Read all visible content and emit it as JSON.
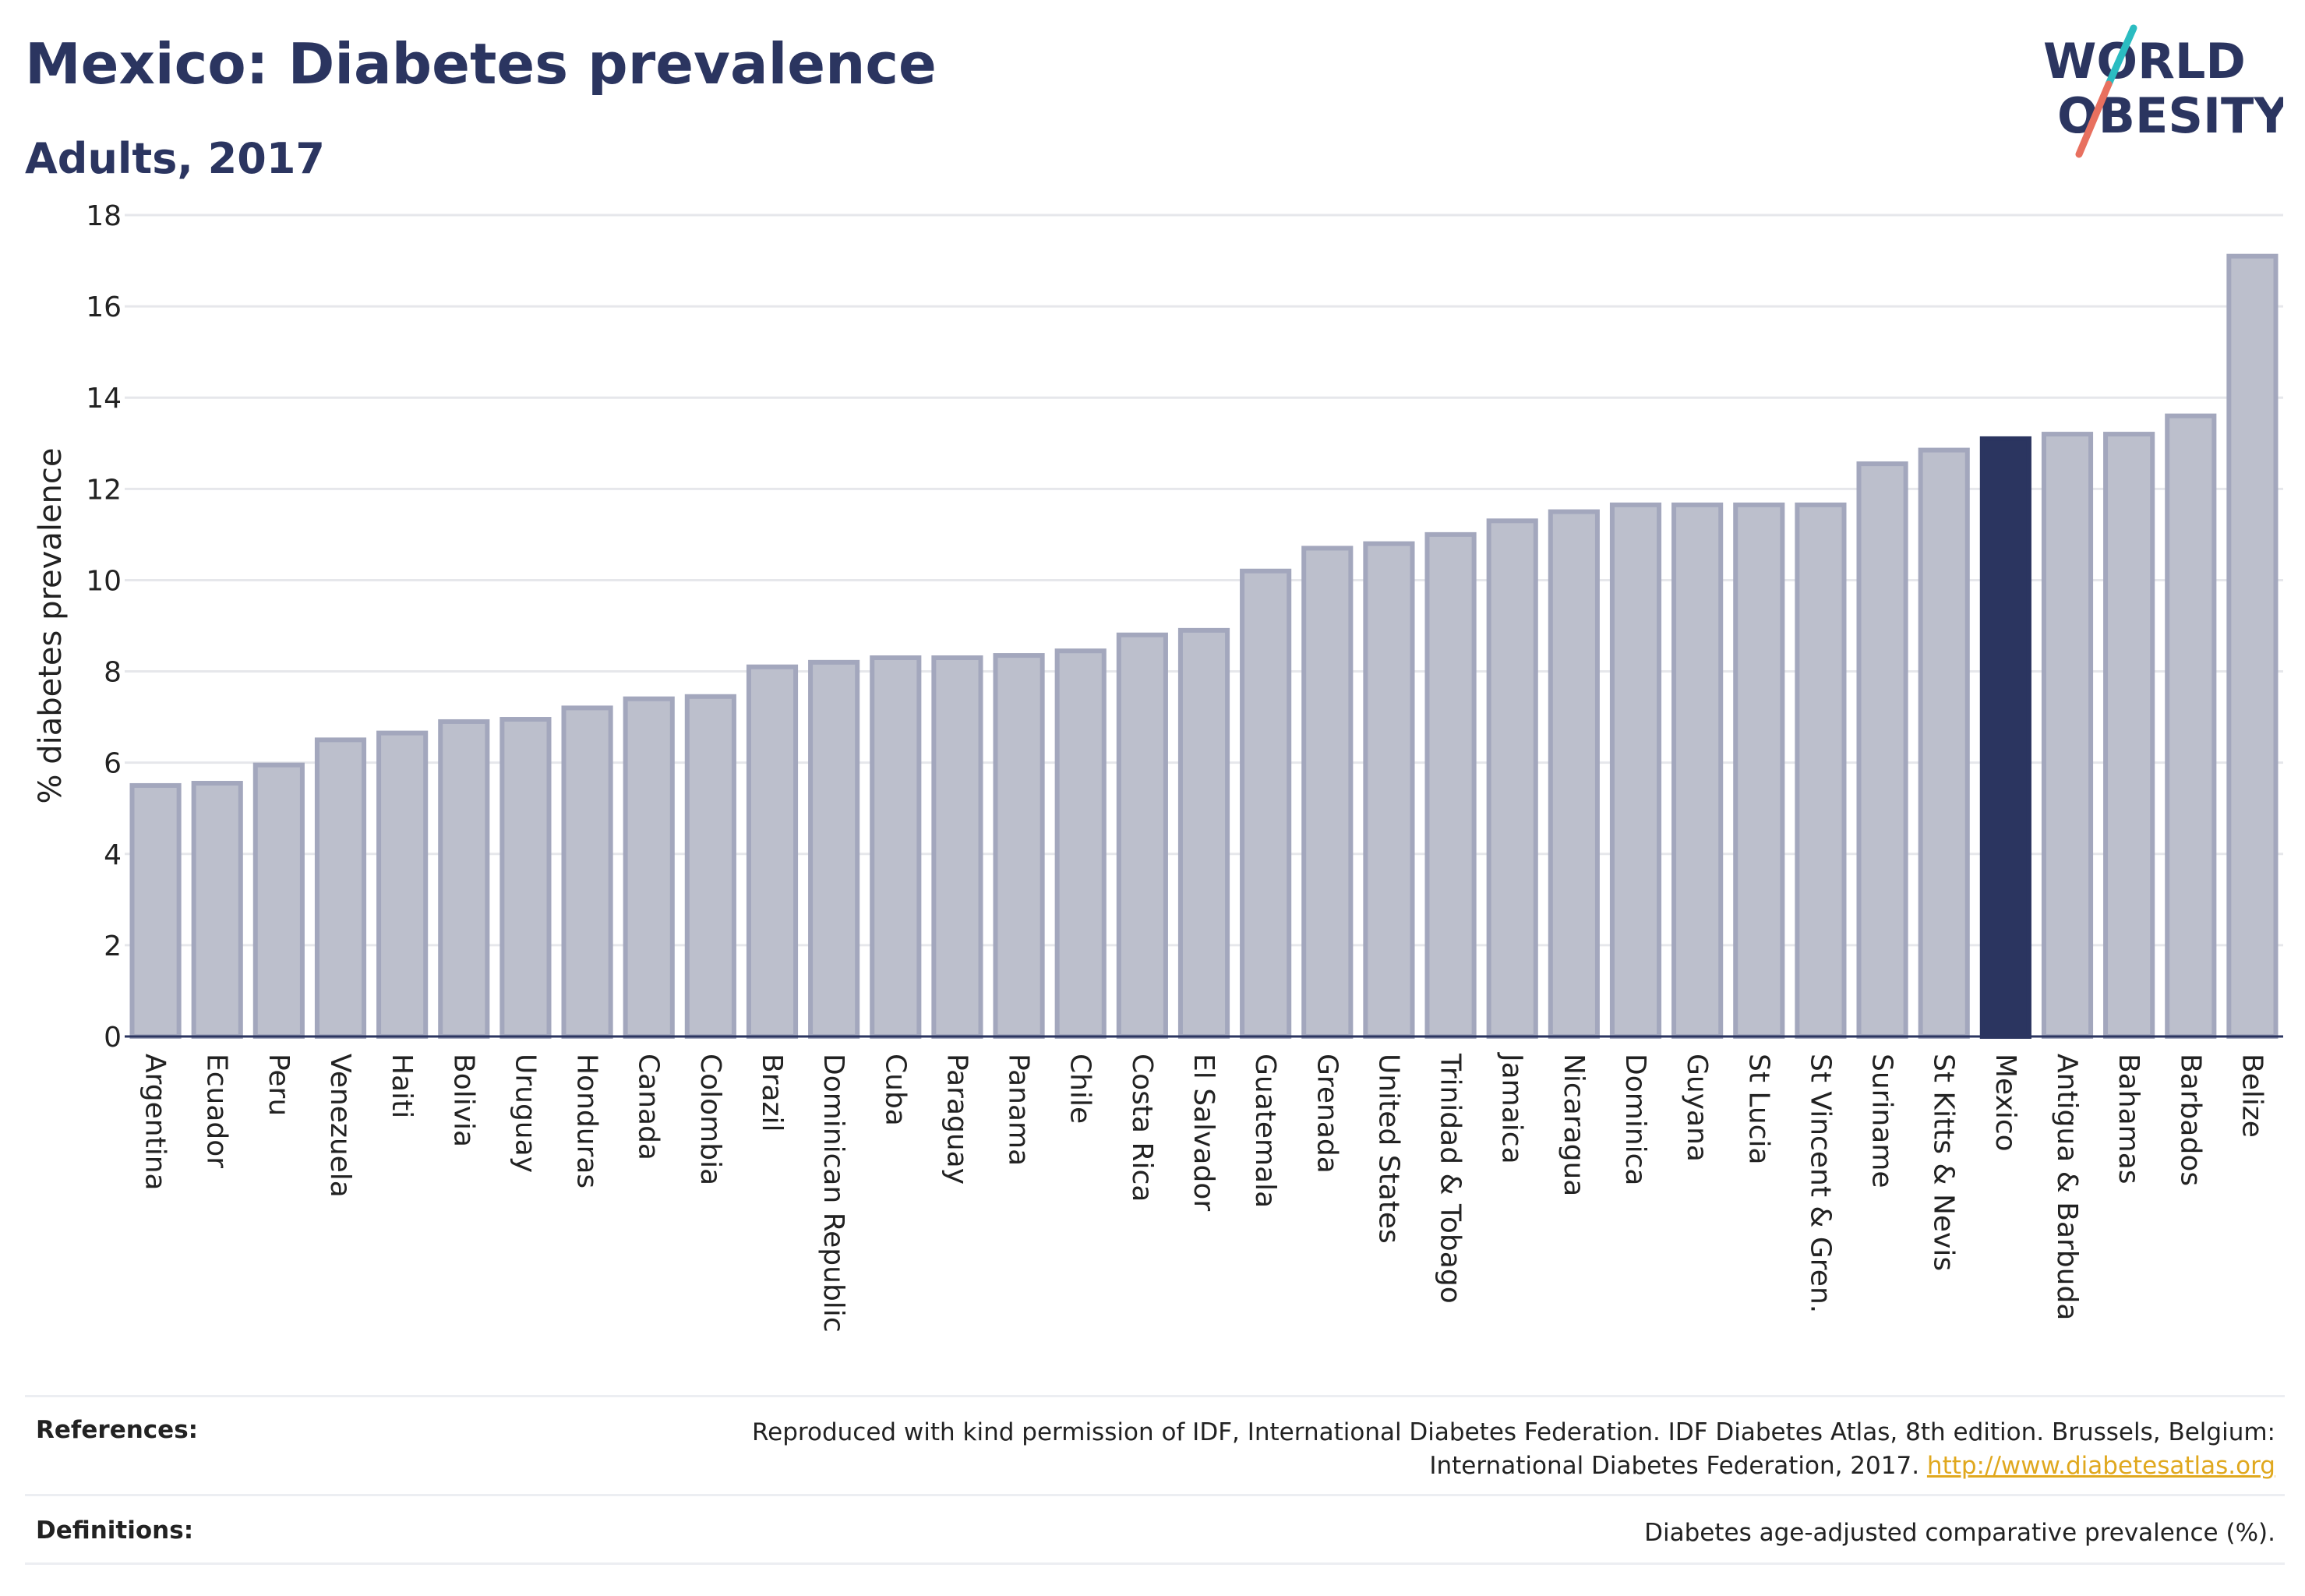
{
  "header": {
    "title": "Mexico: Diabetes prevalence",
    "subtitle": "Adults, 2017"
  },
  "logo": {
    "line1": "WORLD",
    "line2": "OBESITY",
    "accent_teal": "#2bbcc1",
    "accent_coral": "#e8705f",
    "text_color": "#2b3560"
  },
  "colors": {
    "bar_fill": "#bcbfcc",
    "bar_stroke": "#a3a7bd",
    "highlight_fill": "#2b3560",
    "grid": "#e6e7eb",
    "text": "#2b3560"
  },
  "chart_data": {
    "type": "bar",
    "title": "Mexico: Diabetes prevalence",
    "subtitle": "Adults, 2017",
    "xlabel": "",
    "ylabel": "% diabetes prevalence",
    "ylim": [
      0,
      18
    ],
    "yticks": [
      0,
      2,
      4,
      6,
      8,
      10,
      12,
      14,
      16,
      18
    ],
    "grid": "horizontal",
    "highlight": "Mexico",
    "categories": [
      "Argentina",
      "Ecuador",
      "Peru",
      "Venezuela",
      "Haiti",
      "Bolivia",
      "Uruguay",
      "Honduras",
      "Canada",
      "Colombia",
      "Brazil",
      "Dominican Republic",
      "Cuba",
      "Paraguay",
      "Panama",
      "Chile",
      "Costa Rica",
      "El Salvador",
      "Guatemala",
      "Grenada",
      "United States",
      "Trinidad & Tobago",
      "Jamaica",
      "Nicaragua",
      "Dominica",
      "Guyana",
      "St Lucia",
      "St Vincent & Gren.",
      "Suriname",
      "St Kitts & Nevis",
      "Mexico",
      "Antigua & Barbuda",
      "Bahamas",
      "Barbados",
      "Belize"
    ],
    "values": [
      5.5,
      5.55,
      5.95,
      6.5,
      6.65,
      6.9,
      6.95,
      7.2,
      7.4,
      7.45,
      8.1,
      8.2,
      8.3,
      8.3,
      8.35,
      8.45,
      8.8,
      8.9,
      10.2,
      10.7,
      10.8,
      11.0,
      11.3,
      11.5,
      11.65,
      11.65,
      11.65,
      11.65,
      12.55,
      12.85,
      13.1,
      13.2,
      13.2,
      13.6,
      17.1
    ]
  },
  "footer": {
    "references_label": "References:",
    "references_text_1": "Reproduced with kind permission of IDF, International Diabetes Federation. IDF Diabetes Atlas, 8th edition. Brussels, Belgium:",
    "references_text_2": "International Diabetes Federation, 2017.",
    "references_link": "http://www.diabetesatlas.org",
    "definitions_label": "Definitions:",
    "definitions_text": "Diabetes age-adjusted comparative prevalence (%)."
  }
}
